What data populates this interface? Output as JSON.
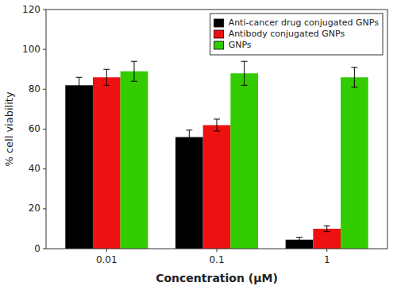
{
  "chart_data": {
    "type": "bar",
    "xlabel": "Concentration (μM)",
    "ylabel": "% cell viability",
    "categories": [
      "0.01",
      "0.1",
      "1"
    ],
    "series": [
      {
        "name": "Anti-cancer drug conjugated GNPs",
        "color": "#000000",
        "values": [
          82,
          56,
          4.5
        ],
        "errors": [
          4,
          3.5,
          1.2
        ]
      },
      {
        "name": "Antibody conjugated GNPs",
        "color": "#ee1111",
        "values": [
          86,
          62,
          10
        ],
        "errors": [
          4,
          3,
          1.5
        ]
      },
      {
        "name": "GNPs",
        "color": "#33cc00",
        "values": [
          89,
          88,
          86
        ],
        "errors": [
          5,
          6,
          5
        ]
      }
    ],
    "ylim": [
      0,
      120
    ],
    "yticks": [
      0,
      20,
      40,
      60,
      80,
      100,
      120
    ],
    "grid": false,
    "legend": "upper right"
  }
}
